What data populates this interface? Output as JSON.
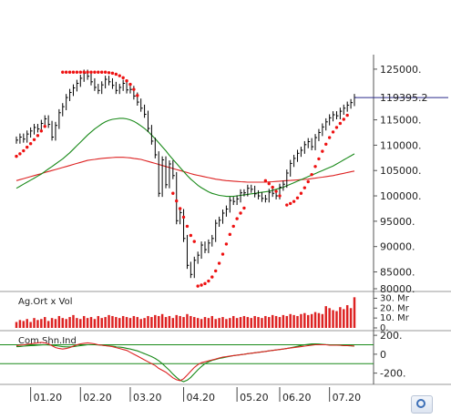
{
  "chart_data": [
    {
      "type": "line",
      "panel": "price",
      "title": "",
      "ylim": [
        81500,
        127500
      ],
      "y_ticks": [
        "125000.",
        "115000.",
        "110000.",
        "105000.",
        "100000.",
        "95000.",
        "90000.",
        "85000.",
        "80000."
      ],
      "last_price_label": "119395.2",
      "last_price": 119395.2,
      "colors": {
        "price": "#000000",
        "psar": "#ee1111",
        "ma_short": "#1a8a1a",
        "ma_long": "#dd2222",
        "last": "#2b2b8a"
      },
      "x_month_labels": [
        "01.20",
        "02.20",
        "03.20",
        "04.20",
        "05.20",
        "06.20",
        "07.20"
      ],
      "price_close": [
        111000,
        111600,
        111200,
        112200,
        112800,
        113500,
        113200,
        114300,
        115200,
        114100,
        111600,
        113900,
        116400,
        117600,
        119400,
        120400,
        121300,
        122200,
        123200,
        124200,
        123600,
        122500,
        121400,
        120800,
        121900,
        123000,
        122500,
        121800,
        120800,
        121400,
        122200,
        120900,
        121000,
        119700,
        118500,
        117300,
        116100,
        113300,
        110800,
        108100,
        100500,
        107100,
        102200,
        106300,
        104000,
        95100,
        96700,
        91600,
        86300,
        84500,
        87300,
        88300,
        90300,
        89400,
        90700,
        91600,
        94600,
        95200,
        96600,
        97400,
        99100,
        98900,
        99400,
        100600,
        100600,
        101500,
        101300,
        100400,
        100000,
        99500,
        99400,
        100700,
        100500,
        100000,
        101700,
        102300,
        104500,
        106400,
        107400,
        108400,
        109000,
        110100,
        110700,
        109700,
        111500,
        112500,
        113600,
        114600,
        115400,
        116000,
        115800,
        116700,
        117300,
        117900,
        118400,
        119400
      ],
      "psar_points": [
        [
          0,
          107800
        ],
        [
          1,
          108300
        ],
        [
          2,
          108900
        ],
        [
          3,
          109600
        ],
        [
          4,
          110300
        ],
        [
          5,
          111100
        ],
        [
          6,
          111900
        ],
        [
          7,
          112800
        ],
        [
          8,
          113700
        ],
        [
          13,
          124400
        ],
        [
          14,
          124400
        ],
        [
          15,
          124400
        ],
        [
          16,
          124400
        ],
        [
          17,
          124400
        ],
        [
          18,
          124400
        ],
        [
          19,
          124400
        ],
        [
          20,
          124400
        ],
        [
          21,
          124400
        ],
        [
          22,
          124400
        ],
        [
          23,
          124400
        ],
        [
          24,
          124400
        ],
        [
          25,
          124400
        ],
        [
          26,
          124300
        ],
        [
          27,
          124200
        ],
        [
          28,
          124000
        ],
        [
          29,
          123700
        ],
        [
          30,
          123300
        ],
        [
          31,
          122700
        ],
        [
          32,
          122000
        ],
        [
          33,
          121000
        ],
        [
          34,
          119800
        ],
        [
          44,
          100500
        ],
        [
          45,
          99000
        ],
        [
          46,
          97500
        ],
        [
          47,
          95800
        ],
        [
          48,
          94000
        ],
        [
          49,
          92200
        ],
        [
          50,
          91000
        ],
        [
          51,
          82200
        ],
        [
          52,
          82400
        ],
        [
          53,
          82700
        ],
        [
          54,
          83200
        ],
        [
          55,
          84000
        ],
        [
          56,
          85200
        ],
        [
          57,
          86700
        ],
        [
          58,
          88500
        ],
        [
          59,
          90500
        ],
        [
          60,
          92400
        ],
        [
          61,
          94000
        ],
        [
          62,
          95500
        ],
        [
          63,
          96600
        ],
        [
          64,
          97600
        ],
        [
          70,
          103000
        ],
        [
          71,
          102400
        ],
        [
          72,
          101700
        ],
        [
          73,
          100900
        ],
        [
          74,
          100000
        ],
        [
          76,
          98200
        ],
        [
          77,
          98500
        ],
        [
          78,
          98900
        ],
        [
          79,
          99600
        ],
        [
          80,
          100500
        ],
        [
          81,
          101600
        ],
        [
          82,
          102800
        ],
        [
          83,
          104200
        ],
        [
          84,
          105800
        ],
        [
          85,
          107300
        ],
        [
          86,
          108800
        ],
        [
          87,
          110200
        ],
        [
          88,
          111500
        ],
        [
          89,
          112600
        ],
        [
          90,
          113500
        ],
        [
          91,
          114300
        ],
        [
          92,
          115100
        ],
        [
          93,
          115900
        ]
      ],
      "ma_short": [
        101500,
        101900,
        102300,
        102700,
        103100,
        103500,
        103900,
        104300,
        104800,
        105300,
        105800,
        106300,
        106800,
        107300,
        107900,
        108500,
        109200,
        109900,
        110600,
        111300,
        112000,
        112600,
        113200,
        113700,
        114200,
        114600,
        114900,
        115100,
        115200,
        115300,
        115300,
        115200,
        115000,
        114700,
        114300,
        113800,
        113300,
        112700,
        112000,
        111300,
        110500,
        109700,
        108900,
        108000,
        107200,
        106400,
        105600,
        104800,
        104000,
        103300,
        102700,
        102100,
        101600,
        101200,
        100800,
        100500,
        100300,
        100100,
        100000,
        99900,
        99900,
        99900,
        100000,
        100100,
        100200,
        100300,
        100400,
        100500,
        100600,
        100700,
        100800,
        100900,
        101100,
        101300,
        101500,
        101700,
        102000,
        102300,
        102600,
        102900,
        103200,
        103500,
        103800,
        104100,
        104400,
        104700,
        105000,
        105300,
        105600,
        105900,
        106300,
        106700,
        107100,
        107500,
        107900,
        108300
      ],
      "ma_long": [
        103000,
        103200,
        103400,
        103600,
        103800,
        104000,
        104200,
        104400,
        104600,
        104800,
        105000,
        105200,
        105400,
        105600,
        105800,
        106000,
        106200,
        106400,
        106600,
        106800,
        107000,
        107100,
        107200,
        107300,
        107400,
        107450,
        107500,
        107550,
        107600,
        107600,
        107600,
        107550,
        107500,
        107400,
        107300,
        107200,
        107000,
        106800,
        106600,
        106400,
        106200,
        106000,
        105800,
        105600,
        105400,
        105200,
        105000,
        104800,
        104600,
        104400,
        104200,
        104050,
        103900,
        103750,
        103600,
        103450,
        103300,
        103200,
        103100,
        103000,
        102950,
        102900,
        102850,
        102800,
        102750,
        102700,
        102700,
        102700,
        102700,
        102700,
        102700,
        102750,
        102800,
        102850,
        102900,
        102950,
        103000,
        103050,
        103100,
        103150,
        103200,
        103250,
        103300,
        103400,
        103500,
        103600,
        103700,
        103800,
        103900,
        104000,
        104150,
        104300,
        104450,
        104600,
        104750,
        104900
      ]
    },
    {
      "type": "bar",
      "panel": "volume",
      "title": "Ag.Ort x Vol",
      "y_ticks": [
        "30. Mr",
        "20. Mr",
        "10. Mr",
        "0."
      ],
      "ylim": [
        0,
        35
      ],
      "bar_color": "#dd2222",
      "values": [
        6,
        8,
        7,
        9,
        6,
        10,
        8,
        9,
        11,
        7,
        10,
        9,
        12,
        10,
        9,
        11,
        13,
        10,
        9,
        12,
        10,
        11,
        9,
        12,
        10,
        11,
        13,
        12,
        11,
        10,
        12,
        11,
        10,
        12,
        11,
        9,
        10,
        12,
        11,
        13,
        12,
        14,
        11,
        12,
        10,
        13,
        12,
        11,
        14,
        12,
        11,
        10,
        9,
        11,
        10,
        12,
        9,
        10,
        11,
        9,
        10,
        12,
        10,
        11,
        12,
        11,
        10,
        12,
        11,
        10,
        12,
        11,
        13,
        12,
        11,
        13,
        12,
        14,
        13,
        12,
        14,
        15,
        13,
        14,
        16,
        15,
        14,
        22,
        20,
        18,
        17,
        21,
        19,
        23,
        20,
        31
      ]
    },
    {
      "type": "line",
      "panel": "oscillator",
      "title": "Com.Shn.Ind",
      "y_ticks": [
        "200.",
        "0",
        "-200."
      ],
      "ylim": [
        -300,
        230
      ],
      "thresholds": [
        100,
        -100
      ],
      "colors": {
        "ind": "#dd2222",
        "signal": "#1a8a1a",
        "threshold": "#1a8a1a"
      },
      "ind": [
        90,
        95,
        100,
        105,
        110,
        115,
        120,
        125,
        120,
        110,
        90,
        70,
        60,
        55,
        60,
        70,
        85,
        100,
        110,
        115,
        120,
        115,
        110,
        100,
        95,
        90,
        85,
        80,
        70,
        60,
        50,
        40,
        20,
        0,
        -20,
        -40,
        -60,
        -80,
        -100,
        -120,
        -150,
        -170,
        -190,
        -220,
        -250,
        -270,
        -280,
        -260,
        -220,
        -180,
        -140,
        -110,
        -90,
        -80,
        -70,
        -60,
        -50,
        -40,
        -30,
        -25,
        -20,
        -15,
        -10,
        -5,
        0,
        5,
        10,
        15,
        20,
        25,
        30,
        35,
        40,
        45,
        50,
        55,
        60,
        65,
        70,
        75,
        80,
        85,
        90,
        95,
        100,
        100,
        100,
        100,
        95,
        95,
        95,
        95,
        90,
        90,
        90,
        85
      ],
      "signal": [
        80,
        82,
        85,
        88,
        90,
        92,
        95,
        98,
        100,
        98,
        95,
        90,
        85,
        80,
        78,
        78,
        80,
        85,
        90,
        95,
        100,
        100,
        100,
        98,
        95,
        90,
        88,
        85,
        80,
        75,
        70,
        62,
        55,
        45,
        35,
        20,
        5,
        -10,
        -25,
        -45,
        -70,
        -100,
        -135,
        -170,
        -210,
        -245,
        -275,
        -290,
        -275,
        -245,
        -205,
        -165,
        -130,
        -100,
        -80,
        -65,
        -55,
        -45,
        -38,
        -30,
        -22,
        -15,
        -10,
        -5,
        0,
        5,
        10,
        15,
        20,
        25,
        30,
        35,
        40,
        45,
        50,
        55,
        60,
        68,
        76,
        84,
        92,
        100,
        105,
        110,
        110,
        108,
        105,
        102,
        100,
        98,
        96,
        94,
        92,
        90,
        88,
        86
      ]
    }
  ]
}
